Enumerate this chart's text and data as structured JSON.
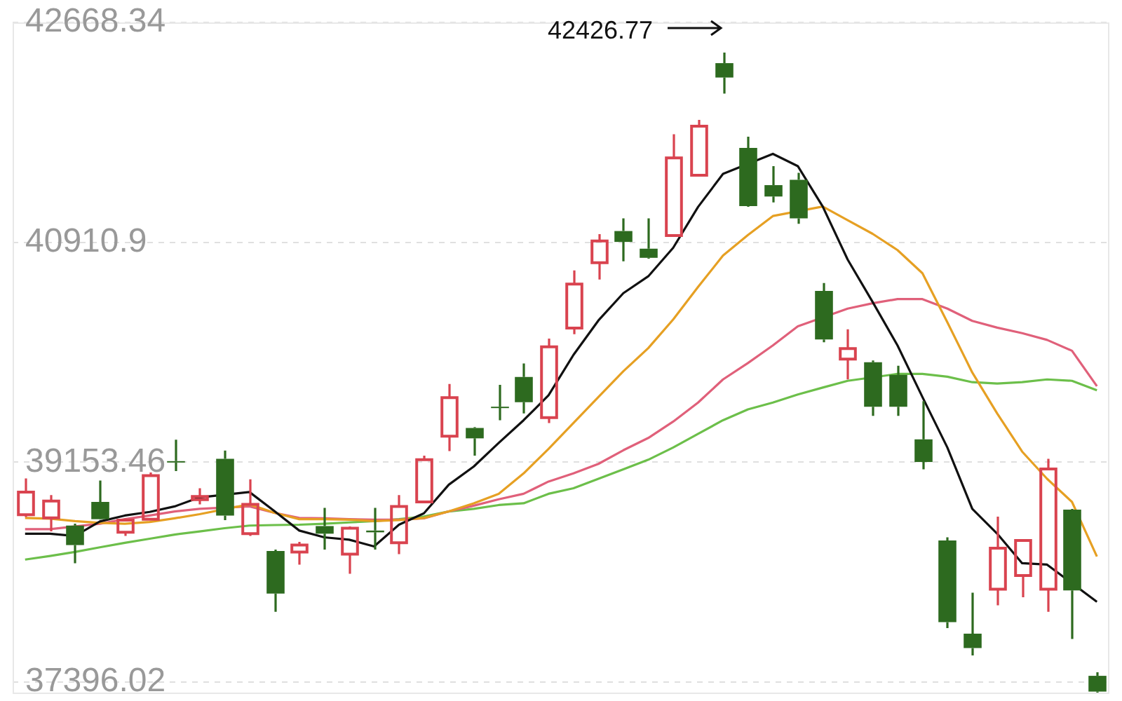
{
  "chart_data": {
    "type": "candlestick",
    "categories": [
      null,
      null,
      null,
      null,
      null,
      null,
      null,
      null,
      null,
      null,
      null,
      null,
      null,
      null,
      null,
      null,
      null,
      null,
      null,
      null,
      null,
      null,
      null,
      null,
      null,
      null,
      null,
      null,
      null,
      null,
      null,
      null,
      null,
      null,
      null,
      null,
      null,
      null,
      null,
      null,
      null,
      null,
      null,
      null
    ],
    "ohlc": [
      [
        38734,
        39024,
        38716,
        38915
      ],
      [
        38708,
        38890,
        38600,
        38843
      ],
      [
        38647,
        38662,
        38346,
        38491
      ],
      [
        38836,
        39007,
        38695,
        38698
      ],
      [
        38593,
        38705,
        38564,
        38691
      ],
      [
        38698,
        39072,
        38695,
        39046
      ],
      [
        39162,
        39333,
        39083,
        39151
      ],
      [
        38854,
        38945,
        38817,
        38879
      ],
      [
        39181,
        39246,
        38691,
        38727
      ],
      [
        38582,
        39017,
        38564,
        38817
      ],
      [
        38444,
        38455,
        37958,
        38103
      ],
      [
        38436,
        38517,
        38335,
        38491
      ],
      [
        38643,
        38789,
        38455,
        38582
      ],
      [
        38419,
        38640,
        38262,
        38626
      ],
      [
        38607,
        38789,
        38455,
        38593
      ],
      [
        38509,
        38890,
        38419,
        38800
      ],
      [
        38836,
        39206,
        38830,
        39173
      ],
      [
        39361,
        39779,
        39242,
        39670
      ],
      [
        39427,
        39434,
        39206,
        39344
      ],
      [
        39597,
        39772,
        39489,
        39587
      ],
      [
        39834,
        39942,
        39543,
        39633
      ],
      [
        39510,
        40142,
        39467,
        40076
      ],
      [
        40225,
        40686,
        40177,
        40577
      ],
      [
        40748,
        40976,
        40613,
        40922
      ],
      [
        41001,
        41102,
        40759,
        40914
      ],
      [
        40860,
        41102,
        40780,
        40787
      ],
      [
        40965,
        41774,
        40957,
        41586
      ],
      [
        41447,
        41890,
        41440,
        41839
      ],
      [
        42343,
        42426.77,
        42100,
        42228
      ],
      [
        41665,
        41755,
        41195,
        41200
      ],
      [
        41368,
        41520,
        41230,
        41277
      ],
      [
        41411,
        41466,
        41059,
        41102
      ],
      [
        40522,
        40585,
        40112,
        40134
      ],
      [
        39978,
        40215,
        39815,
        40062
      ],
      [
        39953,
        39967,
        39524,
        39597
      ],
      [
        39851,
        39924,
        39524,
        39597
      ],
      [
        39336,
        39641,
        39097,
        39155
      ],
      [
        38528,
        38553,
        37827,
        37875
      ],
      [
        37783,
        38110,
        37609,
        37668
      ],
      [
        38139,
        38719,
        38009,
        38466
      ],
      [
        38248,
        38531,
        38074,
        38528
      ],
      [
        38139,
        39181,
        37958,
        39100
      ],
      [
        38774,
        38780,
        37740,
        38128
      ],
      [
        37446,
        37475,
        37312,
        37320
      ]
    ],
    "colors": [
      "#d9434f",
      "#d9434f",
      "#2d6a1f",
      "#2d6a1f",
      "#d9434f",
      "#d9434f",
      "#2d6a1f",
      "#d9434f",
      "#2d6a1f",
      "#d9434f",
      "#2d6a1f",
      "#d9434f",
      "#2d6a1f",
      "#d9434f",
      "#2d6a1f",
      "#d9434f",
      "#d9434f",
      "#d9434f",
      "#2d6a1f",
      "#2d6a1f",
      "#2d6a1f",
      "#d9434f",
      "#d9434f",
      "#d9434f",
      "#2d6a1f",
      "#2d6a1f",
      "#d9434f",
      "#d9434f",
      "#2d6a1f",
      "#2d6a1f",
      "#2d6a1f",
      "#2d6a1f",
      "#2d6a1f",
      "#d9434f",
      "#2d6a1f",
      "#2d6a1f",
      "#2d6a1f",
      "#2d6a1f",
      "#2d6a1f",
      "#d9434f",
      "#d9434f",
      "#d9434f",
      "#2d6a1f",
      "#2d6a1f"
    ],
    "series": [
      {
        "type": "line",
        "color": "#111111",
        "values": [
          38582,
          38582,
          38564,
          38680,
          38727,
          38756,
          38800,
          38872,
          null,
          38915,
          38763,
          38607,
          38553,
          38534,
          38480,
          38654,
          38745,
          38974,
          39119,
          39307,
          39489,
          39688,
          40011,
          40286,
          40504,
          40639,
          40867,
          41194,
          41458,
          null,
          41618,
          41520,
          41197,
          40773,
          40435,
          40087,
          39674,
          39271,
          38781,
          38582,
          38346,
          38335,
          null,
          38038
        ]
      },
      {
        "type": "line",
        "color": "#e6a023",
        "values": [
          38708,
          38702,
          38683,
          38669,
          38662,
          38676,
          38705,
          38738,
          null,
          38817,
          38749,
          38698,
          38698,
          38694,
          38683,
          38691,
          38708,
          38760,
          38825,
          38901,
          39064,
          39260,
          39467,
          39674,
          39880,
          40065,
          40294,
          40555,
          40805,
          40969,
          41121,
          null,
          41197,
          41088,
          40979,
          40849,
          40664,
          40272,
          39870,
          39543,
          39238,
          39021,
          38836,
          38400
        ]
      },
      {
        "type": "line",
        "color": "#e0607a",
        "values": [
          38618,
          38618,
          null,
          38662,
          38698,
          38727,
          38760,
          38781,
          null,
          38800,
          38749,
          38708,
          38705,
          38698,
          38694,
          38694,
          38705,
          38760,
          38806,
          38857,
          38901,
          38999,
          39064,
          39140,
          39249,
          39347,
          39478,
          39630,
          39815,
          39946,
          40087,
          40239,
          null,
          40381,
          40424,
          40457,
          40457,
          40381,
          40283,
          40229,
          40185,
          40131,
          40044,
          39761
        ]
      },
      {
        "type": "line",
        "color": "#6cbf4a",
        "values": [
          38375,
          38404,
          38436,
          38473,
          38509,
          38542,
          38575,
          38600,
          38626,
          38647,
          38651,
          38654,
          38662,
          38672,
          38683,
          38698,
          38719,
          38760,
          38781,
          38811,
          38825,
          38901,
          38945,
          39021,
          39097,
          39173,
          39271,
          39380,
          39489,
          39576,
          39630,
          39695,
          39750,
          39804,
          null,
          39859,
          39859,
          39837,
          39793,
          39782,
          39793,
          39815,
          39804,
          39728
        ]
      }
    ],
    "ylim": [
      37312,
      42668.34
    ],
    "yticks": [
      37396.02,
      39153.46,
      40910.9,
      42668.34
    ],
    "grid": "y",
    "tick_labels": "y",
    "annotations": [
      "42426.77"
    ]
  }
}
